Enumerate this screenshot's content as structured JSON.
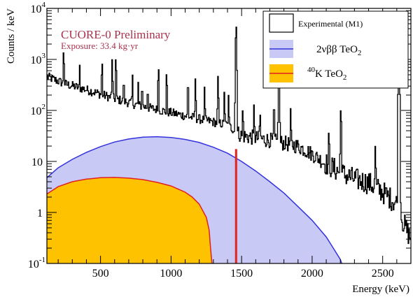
{
  "chart_data": {
    "type": "histogram",
    "xlabel": "Energy (keV)",
    "ylabel": "Counts / keV",
    "xlim": [
      120,
      2700
    ],
    "ylim": [
      0.1,
      10000
    ],
    "yscale": "log",
    "x_ticks": [
      500,
      1000,
      1500,
      2000,
      2500
    ],
    "y_ticks": [
      {
        "value": 0.1,
        "base": "10",
        "exp": "-1"
      },
      {
        "value": 1,
        "base": "1",
        "exp": ""
      },
      {
        "value": 10,
        "base": "10",
        "exp": ""
      },
      {
        "value": 100,
        "base": "10",
        "exp": "2"
      },
      {
        "value": 1000,
        "base": "10",
        "exp": "3"
      },
      {
        "value": 10000,
        "base": "10",
        "exp": "4"
      }
    ],
    "annotation": {
      "line1": "CUORE-0 Preliminary",
      "line2": "Exposure: 33.4 kg·yr",
      "color": "#a8324e"
    },
    "legend": {
      "position": "top-right",
      "entries": [
        {
          "label": "Experimental (M1)",
          "color": "#000000",
          "kind": "line"
        },
        {
          "label_pre": "2νββ TeO",
          "label_sub": "2",
          "color": "#3333dd",
          "fill": "#c9c9f5",
          "kind": "fill"
        },
        {
          "label_sup": "40",
          "label_pre": "K TeO",
          "label_sub": "2",
          "color": "#e02020",
          "fill": "#ffc200",
          "kind": "fill"
        }
      ]
    },
    "series": [
      {
        "name": "Experimental (M1)",
        "color": "#000000",
        "continuum": [
          [
            120,
            460
          ],
          [
            250,
            330
          ],
          [
            400,
            255
          ],
          [
            600,
            170
          ],
          [
            800,
            120
          ],
          [
            1000,
            90
          ],
          [
            1200,
            68
          ],
          [
            1400,
            52
          ],
          [
            1500,
            32
          ],
          [
            1700,
            26
          ],
          [
            1900,
            20
          ],
          [
            2000,
            14
          ],
          [
            2100,
            9
          ],
          [
            2200,
            6
          ],
          [
            2300,
            4.5
          ],
          [
            2400,
            3.8
          ],
          [
            2500,
            2.5
          ],
          [
            2600,
            1.5
          ],
          [
            2650,
            0.6
          ],
          [
            2700,
            0.3
          ]
        ],
        "peaks": [
          [
            239,
            1500
          ],
          [
            352,
            780
          ],
          [
            511,
            900
          ],
          [
            583,
            1000
          ],
          [
            609,
            1100
          ],
          [
            665,
            420
          ],
          [
            727,
            500
          ],
          [
            768,
            360
          ],
          [
            795,
            320
          ],
          [
            835,
            280
          ],
          [
            911,
            700
          ],
          [
            969,
            560
          ],
          [
            1120,
            380
          ],
          [
            1173,
            420
          ],
          [
            1238,
            290
          ],
          [
            1333,
            470
          ],
          [
            1378,
            230
          ],
          [
            1408,
            200
          ],
          [
            1461,
            4800
          ],
          [
            1509,
            110
          ],
          [
            1588,
            130
          ],
          [
            1631,
            90
          ],
          [
            1730,
            140
          ],
          [
            1765,
            900
          ],
          [
            1848,
            110
          ],
          [
            2119,
            40
          ],
          [
            2204,
            110
          ],
          [
            2448,
            20
          ],
          [
            2615,
            3200
          ]
        ]
      },
      {
        "name": "2νββ TeO2",
        "color": "#3333dd",
        "fill": "#c9c9f5",
        "points": [
          [
            120,
            4.8
          ],
          [
            200,
            7.5
          ],
          [
            300,
            11
          ],
          [
            400,
            15
          ],
          [
            500,
            19.5
          ],
          [
            600,
            24
          ],
          [
            700,
            27.5
          ],
          [
            800,
            30
          ],
          [
            900,
            30.5
          ],
          [
            1000,
            29.5
          ],
          [
            1100,
            27
          ],
          [
            1200,
            23.5
          ],
          [
            1300,
            19
          ],
          [
            1400,
            14.5
          ],
          [
            1500,
            10
          ],
          [
            1600,
            6.5
          ],
          [
            1700,
            4.0
          ],
          [
            1800,
            2.4
          ],
          [
            1900,
            1.3
          ],
          [
            2000,
            0.7
          ],
          [
            2100,
            0.33
          ],
          [
            2150,
            0.2
          ],
          [
            2200,
            0.12
          ],
          [
            2210,
            0.1
          ]
        ]
      },
      {
        "name": "40K TeO2",
        "color": "#e02020",
        "fill": "#ffc200",
        "points": [
          [
            120,
            2.3
          ],
          [
            200,
            3.2
          ],
          [
            300,
            4.0
          ],
          [
            400,
            4.5
          ],
          [
            500,
            4.8
          ],
          [
            600,
            4.85
          ],
          [
            700,
            4.7
          ],
          [
            800,
            4.4
          ],
          [
            900,
            3.9
          ],
          [
            1000,
            3.3
          ],
          [
            1100,
            2.5
          ],
          [
            1150,
            2.0
          ],
          [
            1200,
            1.45
          ],
          [
            1250,
            0.8
          ],
          [
            1270,
            0.45
          ],
          [
            1280,
            0.2
          ],
          [
            1290,
            0.1
          ]
        ],
        "line_peak": {
          "x": 1461,
          "y": 17
        }
      }
    ]
  }
}
